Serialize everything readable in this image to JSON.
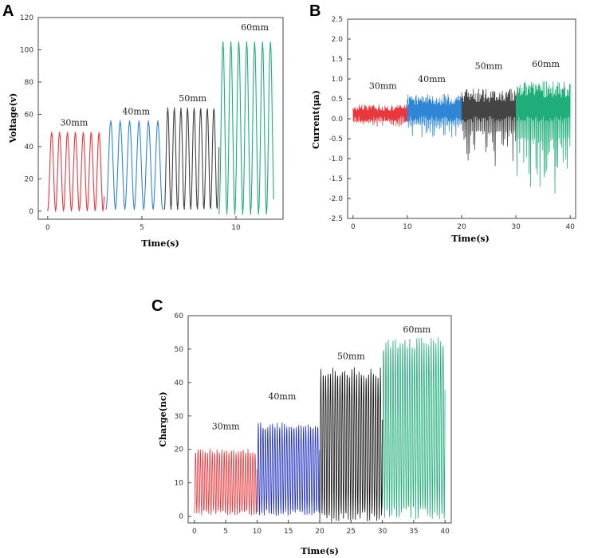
{
  "chart_data": [
    {
      "panel": "A",
      "type": "line",
      "xlabel": "Time(s)",
      "ylabel": "Voltage(v)",
      "xlim": [
        -0.5,
        12.5
      ],
      "ylim": [
        -5,
        120
      ],
      "xticks": [
        0,
        5,
        10
      ],
      "yticks": [
        0,
        20,
        40,
        60,
        80,
        100,
        120
      ],
      "series": [
        {
          "name": "30mm",
          "color": "#e8383d",
          "t_start": 0,
          "t_end": 3,
          "peak": 49,
          "trough": 0,
          "period": 0.42
        },
        {
          "name": "40mm",
          "color": "#2f86d6",
          "t_start": 3.1,
          "t_end": 6.1,
          "peak": 56,
          "trough": 1,
          "period": 0.5
        },
        {
          "name": "50mm",
          "color": "#444444",
          "t_start": 6.2,
          "t_end": 9.1,
          "peak": 64,
          "trough": 1,
          "period": 0.35
        },
        {
          "name": "60mm",
          "color": "#1fae7a",
          "t_start": 9.1,
          "t_end": 12,
          "peak": 105,
          "trough": -2,
          "period": 0.42
        }
      ],
      "annotations": [
        {
          "text": "30mm",
          "x": 1.4,
          "y": 53
        },
        {
          "text": "40mm",
          "x": 4.7,
          "y": 60
        },
        {
          "text": "50mm",
          "x": 7.7,
          "y": 68
        },
        {
          "text": "60mm",
          "x": 11,
          "y": 112
        }
      ]
    },
    {
      "panel": "B",
      "type": "line",
      "xlabel": "Time(s)",
      "ylabel": "Current(μa)",
      "xlim": [
        -1,
        41
      ],
      "ylim": [
        -2.5,
        2.5
      ],
      "xticks": [
        0,
        10,
        20,
        30,
        40
      ],
      "yticks": [
        -2.5,
        -2.0,
        -1.5,
        -1.0,
        -0.5,
        0.0,
        0.5,
        1.0,
        1.5,
        2.0,
        2.5
      ],
      "series": [
        {
          "name": "30mm",
          "color": "#e8383d",
          "t_start": 0,
          "t_end": 10,
          "upper": 0.35,
          "lower": -0.2,
          "period": 0.25
        },
        {
          "name": "40mm",
          "color": "#2f86d6",
          "t_start": 10,
          "t_end": 20,
          "upper": 0.62,
          "lower": -0.5,
          "period": 0.25
        },
        {
          "name": "50mm",
          "color": "#444444",
          "t_start": 20,
          "t_end": 30,
          "upper": 0.75,
          "lower": -1.2,
          "period": 0.25
        },
        {
          "name": "60mm",
          "color": "#1fae7a",
          "t_start": 30,
          "t_end": 40,
          "upper": 0.95,
          "lower": -1.9,
          "period": 0.25
        }
      ],
      "annotations": [
        {
          "text": "30mm",
          "x": 5.5,
          "y": 0.75
        },
        {
          "text": "40mm",
          "x": 14.5,
          "y": 0.92
        },
        {
          "text": "50mm",
          "x": 25,
          "y": 1.25
        },
        {
          "text": "60mm",
          "x": 35.5,
          "y": 1.3
        }
      ]
    },
    {
      "panel": "C",
      "type": "line",
      "xlabel": "Time(s)",
      "ylabel": "Charge(nc)",
      "xlim": [
        -1,
        41
      ],
      "ylim": [
        -2,
        60
      ],
      "xticks": [
        0,
        5,
        10,
        15,
        20,
        25,
        30,
        35,
        40
      ],
      "yticks": [
        0,
        10,
        20,
        30,
        40,
        50,
        60
      ],
      "series": [
        {
          "name": "30mm",
          "color": "#e8383d",
          "t_start": 0,
          "t_end": 10,
          "peak": 19.5,
          "trough": 1,
          "period": 0.38
        },
        {
          "name": "40mm",
          "color": "#1f2fbf",
          "t_start": 10,
          "t_end": 20,
          "peak": 27,
          "trough": 1,
          "period": 0.38
        },
        {
          "name": "50mm",
          "color": "#111111",
          "t_start": 20,
          "t_end": 30,
          "peak": 43,
          "trough": 0,
          "period": 0.38
        },
        {
          "name": "60mm",
          "color": "#1fae7a",
          "t_start": 30,
          "t_end": 40,
          "peak": 51.5,
          "trough": 1,
          "period": 0.38
        }
      ],
      "annotations": [
        {
          "text": "30mm",
          "x": 5,
          "y": 26
        },
        {
          "text": "40mm",
          "x": 14,
          "y": 35
        },
        {
          "text": "50mm",
          "x": 25,
          "y": 47
        },
        {
          "text": "60mm",
          "x": 35.5,
          "y": 55
        }
      ]
    }
  ]
}
